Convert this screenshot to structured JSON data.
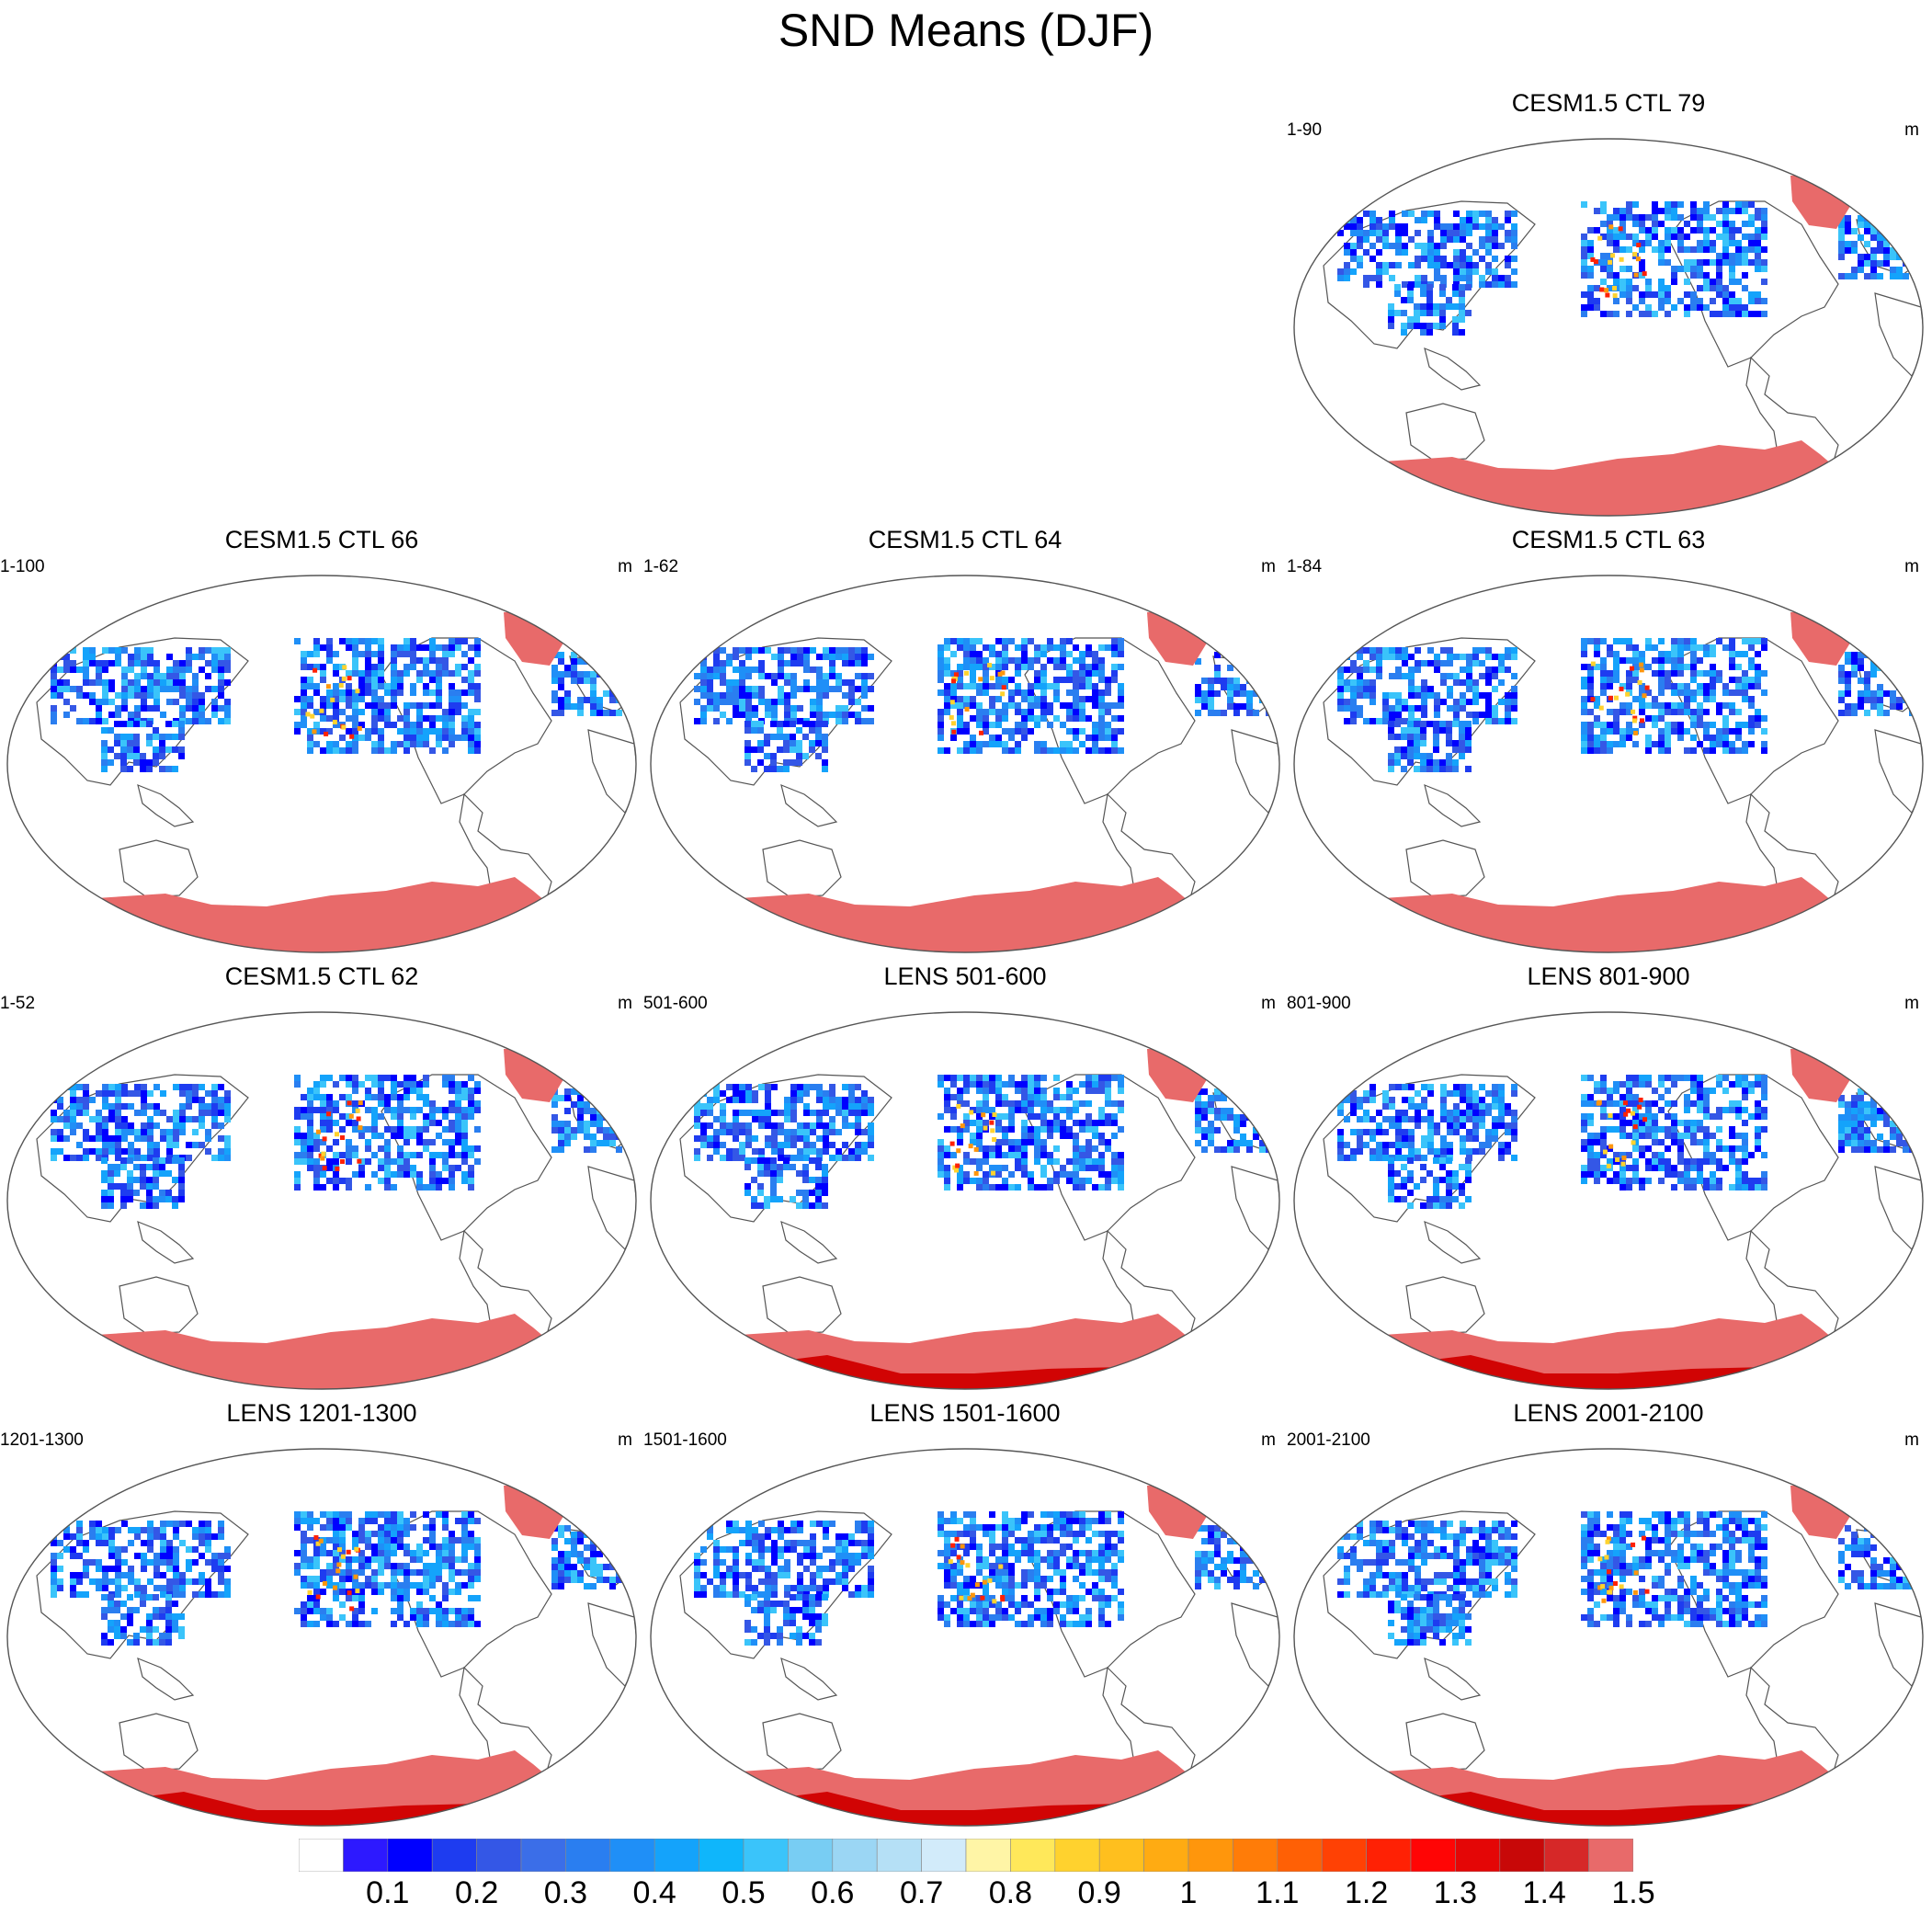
{
  "figure": {
    "title": "SND Means (DJF)",
    "units_label": "m"
  },
  "panels": [
    {
      "title": "CESM1.5 CTL 79",
      "years": "1-90",
      "units": "m",
      "antarctic_deep": false,
      "snow_intensity": "low"
    },
    {
      "title": "CESM1.5 CTL 66",
      "years": "1-100",
      "units": "m",
      "antarctic_deep": false,
      "snow_intensity": "mid"
    },
    {
      "title": "CESM1.5 CTL 64",
      "years": "1-62",
      "units": "m",
      "antarctic_deep": false,
      "snow_intensity": "mid"
    },
    {
      "title": "CESM1.5 CTL 63",
      "years": "1-84",
      "units": "m",
      "antarctic_deep": false,
      "snow_intensity": "mid"
    },
    {
      "title": "CESM1.5 CTL 62",
      "years": "1-52",
      "units": "m",
      "antarctic_deep": false,
      "snow_intensity": "mid"
    },
    {
      "title": "LENS 501-600",
      "years": "501-600",
      "units": "m",
      "antarctic_deep": true,
      "snow_intensity": "high"
    },
    {
      "title": "LENS 801-900",
      "years": "801-900",
      "units": "m",
      "antarctic_deep": true,
      "snow_intensity": "high"
    },
    {
      "title": "LENS 1201-1300",
      "years": "1201-1300",
      "units": "m",
      "antarctic_deep": true,
      "snow_intensity": "high"
    },
    {
      "title": "LENS 1501-1600",
      "years": "1501-1600",
      "units": "m",
      "antarctic_deep": true,
      "snow_intensity": "high"
    },
    {
      "title": "LENS 2001-2100",
      "years": "2001-2100",
      "units": "m",
      "antarctic_deep": true,
      "snow_intensity": "high"
    }
  ],
  "colorbar": {
    "colors": [
      "#ffffff",
      "#2d19ff",
      "#0000ff",
      "#1e3cf0",
      "#3457e6",
      "#3b6ee8",
      "#2a7ef0",
      "#1f8ff7",
      "#14a3fb",
      "#0fb6fb",
      "#3ac4fa",
      "#78cdf3",
      "#9bd6f4",
      "#b5e0f6",
      "#d2ebfa",
      "#fff5a6",
      "#ffe85a",
      "#ffd22e",
      "#ffbf1e",
      "#ffab12",
      "#ff960c",
      "#ff7c08",
      "#ff6005",
      "#ff4104",
      "#ff2104",
      "#ff0505",
      "#e40606",
      "#c80808",
      "#d62828",
      "#e86a6a"
    ],
    "tick_labels": [
      "0.1",
      "0.2",
      "0.3",
      "0.4",
      "0.5",
      "0.6",
      "0.7",
      "0.8",
      "0.9",
      "1",
      "1.1",
      "1.2",
      "1.3",
      "1.4",
      "1.5"
    ]
  }
}
